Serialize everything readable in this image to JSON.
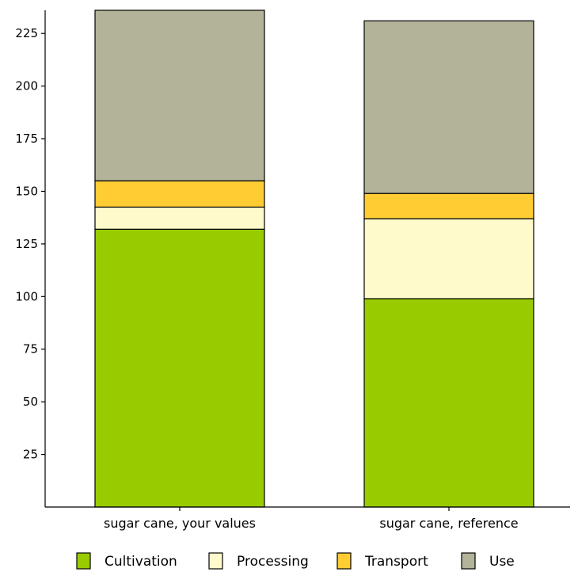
{
  "chart_data": {
    "type": "bar",
    "stacked": true,
    "title": "",
    "xlabel": "",
    "ylabel": "",
    "categories": [
      "sugar cane, your values",
      "sugar cane, reference"
    ],
    "series": [
      {
        "name": "Cultivation",
        "color": "#99cc00",
        "values": [
          132,
          99
        ]
      },
      {
        "name": "Processing",
        "color": "#fffacc",
        "values": [
          10.5,
          38
        ]
      },
      {
        "name": "Transport",
        "color": "#ffcc33",
        "values": [
          12.5,
          12
        ]
      },
      {
        "name": "Use",
        "color": "#b3b39a",
        "values": [
          81,
          82
        ]
      }
    ],
    "ylim": [
      0,
      236
    ],
    "yticks": [
      25,
      50,
      75,
      100,
      125,
      150,
      175,
      200,
      225
    ],
    "grid": false,
    "legend_position": "bottom"
  }
}
